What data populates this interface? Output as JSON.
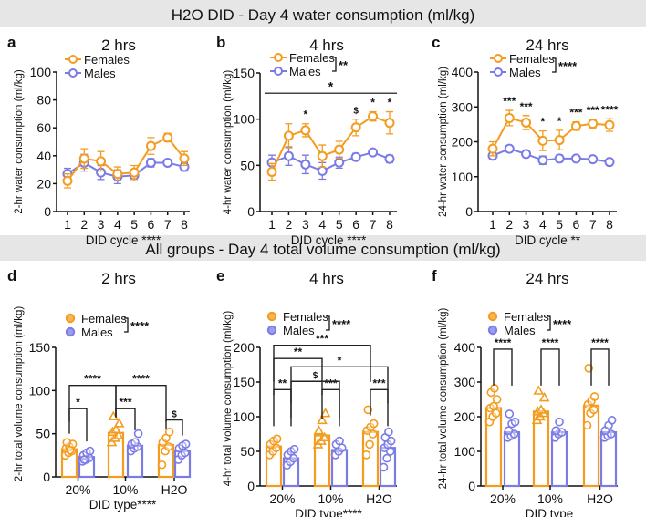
{
  "banners": [
    "H2O DID - Day 4 water consumption (ml/kg)",
    "All groups - Day 4 total volume consumption (ml/kg)"
  ],
  "colors": {
    "females": "#F39C1F",
    "males": "#7B7BE6",
    "banner": "#E6E6E6"
  },
  "legend": {
    "females": "Females",
    "males": "Males"
  },
  "chart_data": [
    {
      "id": "a",
      "type": "line",
      "panel_label": "a",
      "title": "2 hrs",
      "xlabel": "DID cycle ****",
      "ylabel": "2-hr water consumption (ml/kg)",
      "x": [
        1,
        2,
        3,
        4,
        5,
        6,
        7,
        8
      ],
      "ylim": [
        0,
        100
      ],
      "yticks": [
        0,
        20,
        40,
        60,
        80,
        100
      ],
      "legend_sig": "",
      "series": [
        {
          "name": "Females",
          "values": [
            22,
            38,
            36,
            27,
            28,
            47,
            53,
            38
          ],
          "err": [
            5,
            7,
            7,
            5,
            5,
            6,
            3,
            5
          ]
        },
        {
          "name": "Males",
          "values": [
            27,
            35,
            28,
            25,
            26,
            35,
            35,
            32
          ],
          "err": [
            4,
            6,
            5,
            5,
            3,
            3,
            2,
            3
          ]
        }
      ],
      "annotations": []
    },
    {
      "id": "b",
      "type": "line",
      "panel_label": "b",
      "title": "4 hrs",
      "xlabel": "DID cycle ****",
      "ylabel": "4-hr water consumption (ml/kg)",
      "x": [
        1,
        2,
        3,
        4,
        5,
        6,
        7,
        8
      ],
      "ylim": [
        0,
        150
      ],
      "yticks": [
        0,
        50,
        100,
        150
      ],
      "legend_sig": "**",
      "series": [
        {
          "name": "Females",
          "values": [
            43,
            82,
            88,
            60,
            67,
            91,
            103,
            96
          ],
          "err": [
            9,
            13,
            7,
            12,
            9,
            9,
            5,
            12
          ]
        },
        {
          "name": "Males",
          "values": [
            53,
            60,
            51,
            44,
            53,
            59,
            64,
            57
          ],
          "err": [
            8,
            10,
            10,
            9,
            6,
            4,
            2,
            4
          ]
        }
      ],
      "span_line": {
        "value": 128,
        "label": "*"
      },
      "annotations": [
        {
          "x": 3,
          "label": "*"
        },
        {
          "x": 6,
          "label": "$"
        },
        {
          "x": 7,
          "label": "*"
        },
        {
          "x": 8,
          "label": "*"
        }
      ]
    },
    {
      "id": "c",
      "type": "line",
      "panel_label": "c",
      "title": "24 hrs",
      "xlabel": "DID cycle **",
      "ylabel": "24-hr water consumption (ml/kg)",
      "x": [
        1,
        2,
        3,
        4,
        5,
        6,
        7,
        8
      ],
      "ylim": [
        0,
        400
      ],
      "yticks": [
        0,
        100,
        200,
        300,
        400
      ],
      "legend_sig": "****",
      "series": [
        {
          "name": "Females",
          "values": [
            180,
            268,
            255,
            203,
            205,
            245,
            252,
            248
          ],
          "err": [
            20,
            22,
            20,
            28,
            28,
            12,
            12,
            18
          ]
        },
        {
          "name": "Males",
          "values": [
            160,
            180,
            165,
            147,
            152,
            152,
            150,
            142
          ],
          "err": [
            10,
            8,
            5,
            12,
            10,
            8,
            5,
            6
          ]
        }
      ],
      "annotations": [
        {
          "x": 2,
          "label": "***"
        },
        {
          "x": 3,
          "label": "***"
        },
        {
          "x": 4,
          "label": "*"
        },
        {
          "x": 5,
          "label": "*"
        },
        {
          "x": 6,
          "label": "***"
        },
        {
          "x": 7,
          "label": "***"
        },
        {
          "x": 8,
          "label": "****"
        }
      ]
    },
    {
      "id": "d",
      "type": "bar",
      "panel_label": "d",
      "title": "2 hrs",
      "xlabel": "DID type****",
      "ylabel": "2-hr total volume consumption (ml/kg)",
      "categories": [
        "20%",
        "10%",
        "H2O"
      ],
      "ylim": [
        0,
        150
      ],
      "yticks": [
        0,
        50,
        100,
        150
      ],
      "legend_sig": "****",
      "series": [
        {
          "name": "Females",
          "values": [
            32,
            51,
            37
          ],
          "points": [
            [
              25,
              28,
              30,
              33,
              35,
              38,
              40,
              31
            ],
            [
              40,
              45,
              48,
              52,
              55,
              62,
              70
            ],
            [
              14,
              30,
              35,
              40,
              45,
              52
            ]
          ]
        },
        {
          "name": "Males",
          "values": [
            23,
            36,
            30
          ],
          "points": [
            [
              18,
              20,
              22,
              25,
              28,
              30,
              20
            ],
            [
              30,
              33,
              35,
              38,
              40,
              50
            ],
            [
              20,
              25,
              28,
              33,
              36,
              38
            ]
          ]
        }
      ],
      "brackets": [
        {
          "from": [
            0,
            0
          ],
          "to": [
            0,
            1
          ],
          "value": 79,
          "label": "*"
        },
        {
          "from": [
            1,
            0
          ],
          "to": [
            1,
            1
          ],
          "value": 79,
          "label": "***"
        },
        {
          "from": [
            2,
            0
          ],
          "to": [
            2,
            1
          ],
          "value": 66,
          "label": "$"
        },
        {
          "from": [
            0,
            0
          ],
          "to": [
            1,
            0
          ],
          "value": 106,
          "label": "****"
        },
        {
          "from": [
            1,
            0
          ],
          "to": [
            2,
            0
          ],
          "value": 106,
          "label": "****"
        }
      ]
    },
    {
      "id": "e",
      "type": "bar",
      "panel_label": "e",
      "title": "4 hrs",
      "xlabel": "DID type****",
      "ylabel": "4-hr total volume consumption (ml/kg)",
      "categories": [
        "20%",
        "10%",
        "H2O"
      ],
      "ylim": [
        0,
        200
      ],
      "yticks": [
        0,
        50,
        100,
        150,
        200
      ],
      "legend_sig": "****",
      "series": [
        {
          "name": "Females",
          "values": [
            57,
            73,
            78
          ],
          "points": [
            [
              45,
              50,
              55,
              60,
              65,
              68
            ],
            [
              60,
              65,
              70,
              80,
              95,
              105
            ],
            [
              45,
              60,
              75,
              80,
              85,
              90,
              110
            ]
          ]
        },
        {
          "name": "Males",
          "values": [
            40,
            52,
            55
          ],
          "points": [
            [
              30,
              35,
              40,
              45,
              50,
              53
            ],
            [
              45,
              50,
              55,
              60,
              65
            ],
            [
              27,
              40,
              50,
              55,
              60,
              65,
              70,
              78
            ]
          ]
        }
      ],
      "brackets": [
        {
          "from": [
            0,
            0
          ],
          "to": [
            0,
            1
          ],
          "value": 139,
          "label": "**"
        },
        {
          "from": [
            1,
            0
          ],
          "to": [
            1,
            1
          ],
          "value": 139,
          "label": "***"
        },
        {
          "from": [
            2,
            0
          ],
          "to": [
            2,
            1
          ],
          "value": 139,
          "label": "***"
        },
        {
          "from": [
            0,
            1
          ],
          "to": [
            1,
            1
          ],
          "value": 151,
          "label": "$"
        },
        {
          "from": [
            0,
            1
          ],
          "to": [
            2,
            1
          ],
          "value": 172,
          "label": "*"
        },
        {
          "from": [
            0,
            0
          ],
          "to": [
            1,
            0
          ],
          "value": 184,
          "label": "**"
        },
        {
          "from": [
            0,
            0
          ],
          "to": [
            2,
            0
          ],
          "value": 203,
          "label": "***"
        }
      ]
    },
    {
      "id": "f",
      "type": "bar",
      "panel_label": "f",
      "title": "24 hrs",
      "xlabel": "DID type",
      "ylabel": "24-hr total volume consumption (ml/kg)",
      "categories": [
        "20%",
        "10%",
        "H2O"
      ],
      "ylim": [
        0,
        400
      ],
      "yticks": [
        0,
        100,
        200,
        300,
        400
      ],
      "legend_sig": "****",
      "series": [
        {
          "name": "Females",
          "values": [
            225,
            215,
            232
          ],
          "points": [
            [
              185,
              200,
              210,
              225,
              230,
              250,
              270,
              282
            ],
            [
              190,
              200,
              210,
              215,
              220,
              255,
              275
            ],
            [
              175,
              210,
              220,
              235,
              245,
              258,
              340
            ]
          ]
        },
        {
          "name": "Males",
          "values": [
            155,
            155,
            155
          ],
          "points": [
            [
              140,
              145,
              150,
              160,
              180,
              185,
              208
            ],
            [
              140,
              150,
              155,
              160,
              185
            ],
            [
              140,
              145,
              150,
              160,
              175,
              190
            ]
          ]
        }
      ],
      "brackets": [
        {
          "from": [
            0,
            0
          ],
          "to": [
            0,
            1
          ],
          "value": 395,
          "label": "****"
        },
        {
          "from": [
            1,
            0
          ],
          "to": [
            1,
            1
          ],
          "value": 395,
          "label": "****"
        },
        {
          "from": [
            2,
            0
          ],
          "to": [
            2,
            1
          ],
          "value": 395,
          "label": "****"
        }
      ]
    }
  ]
}
